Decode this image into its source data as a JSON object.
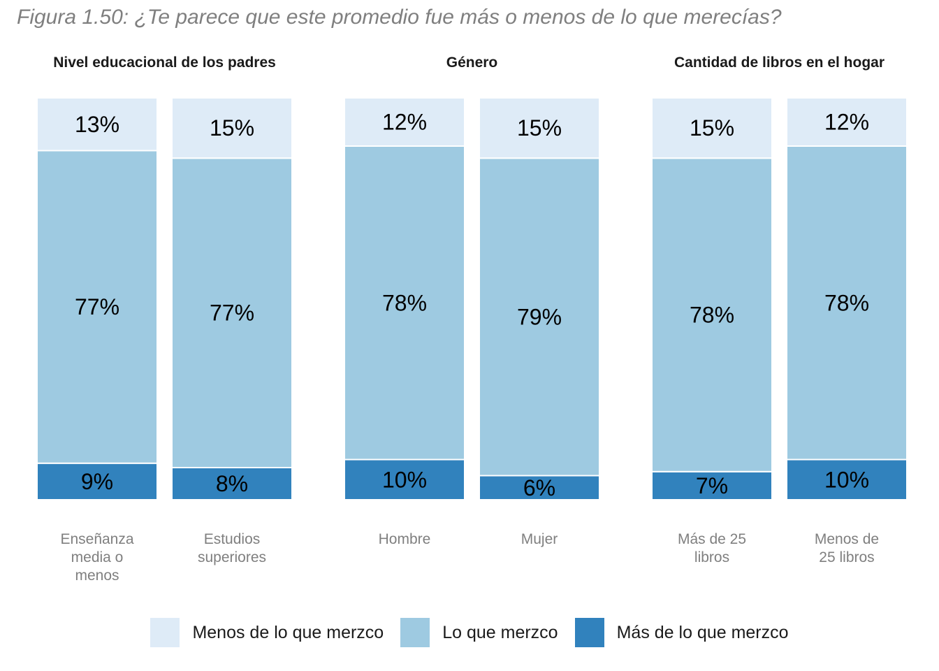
{
  "figure_title": "Figura 1.50: ¿Te parece que este promedio fue más o menos de lo que merecías?",
  "legend": [
    {
      "label": "Menos de lo que merzco",
      "color": "#deebf7"
    },
    {
      "label": "Lo que merzco",
      "color": "#9ecae1"
    },
    {
      "label": "Más de lo que merzco",
      "color": "#3182bd"
    }
  ],
  "chart_data": [
    {
      "type": "bar",
      "stacked": true,
      "title": "Nivel educacional de los padres",
      "categories": [
        [
          "Enseñanza",
          "media o",
          "menos"
        ],
        [
          "Estudios",
          "superiores"
        ]
      ],
      "series": [
        {
          "name": "Más de lo que merzco",
          "values": [
            9,
            8
          ],
          "labels": [
            "9%",
            "8%"
          ]
        },
        {
          "name": "Lo que merzco",
          "values": [
            77,
            77
          ],
          "labels": [
            "77%",
            "77%"
          ]
        },
        {
          "name": "Menos de lo que merzco",
          "values": [
            13,
            15
          ],
          "labels": [
            "13%",
            "15%"
          ]
        }
      ]
    },
    {
      "type": "bar",
      "stacked": true,
      "title": "Género",
      "categories": [
        [
          "Hombre"
        ],
        [
          "Mujer"
        ]
      ],
      "series": [
        {
          "name": "Más de lo que merzco",
          "values": [
            10,
            6
          ],
          "labels": [
            "10%",
            "6%"
          ]
        },
        {
          "name": "Lo que merzco",
          "values": [
            78,
            79
          ],
          "labels": [
            "78%",
            "79%"
          ]
        },
        {
          "name": "Menos de lo que merzco",
          "values": [
            12,
            15
          ],
          "labels": [
            "12%",
            "15%"
          ]
        }
      ]
    },
    {
      "type": "bar",
      "stacked": true,
      "title": "Cantidad de libros en el hogar",
      "categories": [
        [
          "Más de 25",
          "libros"
        ],
        [
          "Menos de",
          "25 libros"
        ]
      ],
      "series": [
        {
          "name": "Más de lo que merzco",
          "values": [
            7,
            10
          ],
          "labels": [
            "7%",
            "10%"
          ]
        },
        {
          "name": "Lo que merzco",
          "values": [
            78,
            78
          ],
          "labels": [
            "78%",
            "78%"
          ]
        },
        {
          "name": "Menos de lo que merzco",
          "values": [
            15,
            12
          ],
          "labels": [
            "15%",
            "12%"
          ]
        }
      ]
    }
  ]
}
